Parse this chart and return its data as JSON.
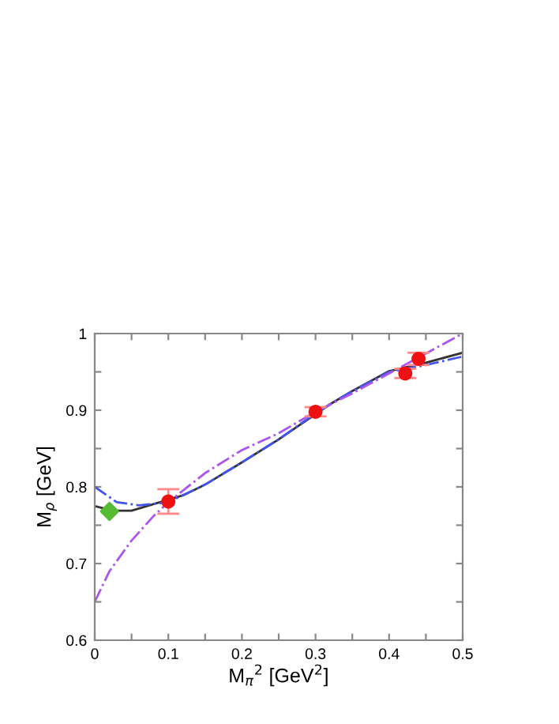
{
  "chart_data": {
    "type": "line",
    "xlabel": "M$_{π}$$^{2}$ [GeV$^{2}$]",
    "ylabel": "M$_{ρ}$ [GeV]",
    "xlim": [
      0,
      0.5
    ],
    "ylim": [
      0.6,
      1
    ],
    "xticks": [
      0,
      {
        "value": 0.05,
        "label": null
      },
      0.1,
      {
        "value": 0.15,
        "label": null
      },
      0.2,
      {
        "value": 0.25,
        "label": null
      },
      0.3,
      {
        "value": 0.35,
        "label": null
      },
      0.4,
      {
        "value": 0.45,
        "label": null
      },
      0.5
    ],
    "yticks": [
      0.6,
      {
        "value": 0.65,
        "label": null
      },
      0.7,
      {
        "value": 0.75,
        "label": null
      },
      0.8,
      {
        "value": 0.85,
        "label": null
      },
      0.9,
      {
        "value": 0.95,
        "label": null
      },
      1
    ],
    "grid": false,
    "legend": false,
    "series": [
      {
        "color": "#333333",
        "line_style": "solid",
        "marker": "none",
        "x": [
          0,
          0.025,
          0.05,
          0.12,
          0.15,
          0.2,
          0.25,
          0.32,
          0.35,
          0.4,
          0.45,
          0.5
        ],
        "values": [
          0.775,
          0.769,
          0.769,
          0.789,
          0.803,
          0.832,
          0.862,
          0.908,
          0.925,
          0.951,
          0.962,
          0.975
        ]
      },
      {
        "color": "#4455ee",
        "line_style": "dashdot",
        "marker": "none",
        "x": [
          0,
          0.03,
          0.06,
          0.1,
          0.15,
          0.2,
          0.25,
          0.3,
          0.35,
          0.4,
          0.45,
          0.5
        ],
        "values": [
          0.8,
          0.78,
          0.776,
          0.78,
          0.803,
          0.832,
          0.862,
          0.896,
          0.925,
          0.95,
          0.959,
          0.97
        ]
      },
      {
        "color": "#aa55ee",
        "line_style": "dashdot",
        "marker": "none",
        "x": [
          0,
          0.02,
          0.05,
          0.08,
          0.1,
          0.15,
          0.2,
          0.25,
          0.3,
          0.35,
          0.4,
          0.45,
          0.5
        ],
        "values": [
          0.65,
          0.69,
          0.73,
          0.762,
          0.78,
          0.818,
          0.848,
          0.87,
          0.898,
          0.922,
          0.948,
          0.974,
          1.0
        ]
      },
      {
        "type": "scatter",
        "color": "#ee1111",
        "marker": "circle",
        "x": [
          0.1,
          0.3,
          0.422,
          0.44
        ],
        "values": [
          0.781,
          0.898,
          0.948,
          0.967
        ],
        "errors": [
          0.016,
          0.006,
          0.006,
          0.008
        ]
      },
      {
        "type": "scatter",
        "color": "#55bb33",
        "marker": "diamond",
        "x": [
          0.02
        ],
        "values": [
          0.768
        ]
      }
    ]
  }
}
